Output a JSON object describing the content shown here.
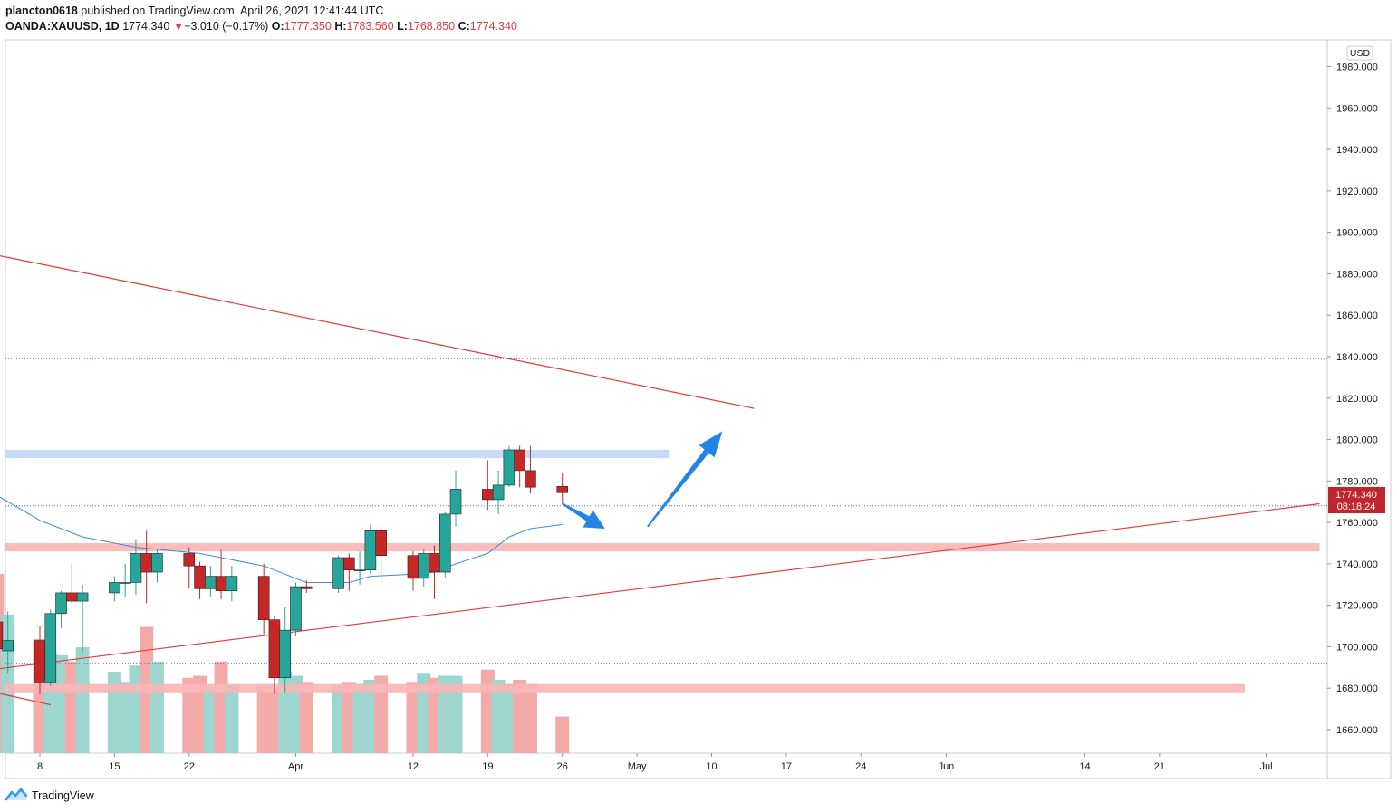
{
  "header": {
    "user": "plancton0618",
    "published_text": "published on TradingView.com, April 26, 2021 12:41:44 UTC",
    "symbol": "OANDA:XAUUSD, 1D",
    "last": "1774.340",
    "change_arrow": "▼",
    "change": "−3.010 (−0.17%)",
    "open_label": "O:",
    "open": "1777.350",
    "high_label": "H:",
    "high": "1783.560",
    "low_label": "L:",
    "low": "1768.850",
    "close_label": "C:",
    "close": "1774.340"
  },
  "footer": {
    "brand": "TradingView",
    "logo_icon": "tradingview-logo-icon"
  },
  "colors": {
    "up": "#26a69a",
    "down": "#c62828",
    "up_vol": "#9dd6cf",
    "down_vol": "#f5aaaa",
    "trendline": "#e53935",
    "ma": "#3a8fd8",
    "zone_red": "#f9b6b6",
    "zone_blue": "#c5d9f5",
    "arrow": "#2384e6"
  },
  "chart_data": {
    "type": "candlestick",
    "currency": "USD",
    "price_label": "1774.340",
    "countdown_label": "08:18:24",
    "y_range": [
      1650,
      1990
    ],
    "y_ticks": [
      "1980.000",
      "1960.000",
      "1940.000",
      "1920.000",
      "1900.000",
      "1880.000",
      "1860.000",
      "1840.000",
      "1820.000",
      "1800.000",
      "1780.000",
      "1760.000",
      "1740.000",
      "1720.000",
      "1700.000",
      "1680.000",
      "1660.000"
    ],
    "x_ticks": [
      {
        "label": "8",
        "date": "2021-03-08"
      },
      {
        "label": "15",
        "date": "2021-03-15"
      },
      {
        "label": "22",
        "date": "2021-03-22"
      },
      {
        "label": "Apr",
        "date": "2021-04-01"
      },
      {
        "label": "12",
        "date": "2021-04-12"
      },
      {
        "label": "19",
        "date": "2021-04-19"
      },
      {
        "label": "26",
        "date": "2021-04-26"
      },
      {
        "label": "May",
        "date": "2021-05-03"
      },
      {
        "label": "10",
        "date": "2021-05-10"
      },
      {
        "label": "17",
        "date": "2021-05-17"
      },
      {
        "label": "24",
        "date": "2021-05-24"
      },
      {
        "label": "Jun",
        "date": "2021-06-01"
      },
      {
        "label": "14",
        "date": "2021-06-14"
      },
      {
        "label": "21",
        "date": "2021-06-21"
      },
      {
        "label": "Jul",
        "date": "2021-07-01"
      }
    ],
    "candles": [
      {
        "date": "2021-03-04",
        "o": 1712,
        "h": 1723,
        "l": 1688,
        "c": 1699
      },
      {
        "date": "2021-03-05",
        "o": 1698,
        "h": 1717,
        "l": 1687,
        "c": 1703
      },
      {
        "date": "2021-03-08",
        "o": 1703,
        "h": 1710,
        "l": 1677,
        "c": 1683
      },
      {
        "date": "2021-03-09",
        "o": 1683,
        "h": 1718,
        "l": 1681,
        "c": 1716
      },
      {
        "date": "2021-03-10",
        "o": 1716,
        "h": 1727,
        "l": 1709,
        "c": 1726
      },
      {
        "date": "2021-03-11",
        "o": 1726,
        "h": 1740,
        "l": 1721,
        "c": 1722
      },
      {
        "date": "2021-03-12",
        "o": 1722,
        "h": 1730,
        "l": 1697,
        "c": 1726
      },
      {
        "date": "2021-03-15",
        "o": 1726,
        "h": 1734,
        "l": 1722,
        "c": 1731
      },
      {
        "date": "2021-03-16",
        "o": 1731,
        "h": 1740,
        "l": 1724,
        "c": 1731
      },
      {
        "date": "2021-03-17",
        "o": 1731,
        "h": 1752,
        "l": 1725,
        "c": 1745
      },
      {
        "date": "2021-03-18",
        "o": 1745,
        "h": 1756,
        "l": 1721,
        "c": 1736
      },
      {
        "date": "2021-03-19",
        "o": 1736,
        "h": 1747,
        "l": 1731,
        "c": 1745
      },
      {
        "date": "2021-03-22",
        "o": 1745,
        "h": 1748,
        "l": 1728,
        "c": 1739
      },
      {
        "date": "2021-03-23",
        "o": 1739,
        "h": 1741,
        "l": 1723,
        "c": 1728
      },
      {
        "date": "2021-03-24",
        "o": 1728,
        "h": 1739,
        "l": 1724,
        "c": 1734
      },
      {
        "date": "2021-03-25",
        "o": 1734,
        "h": 1747,
        "l": 1723,
        "c": 1727
      },
      {
        "date": "2021-03-26",
        "o": 1727,
        "h": 1739,
        "l": 1722,
        "c": 1734
      },
      {
        "date": "2021-03-29",
        "o": 1734,
        "h": 1740,
        "l": 1706,
        "c": 1713
      },
      {
        "date": "2021-03-30",
        "o": 1713,
        "h": 1715,
        "l": 1677,
        "c": 1685
      },
      {
        "date": "2021-03-31",
        "o": 1685,
        "h": 1719,
        "l": 1678,
        "c": 1708
      },
      {
        "date": "2021-04-01",
        "o": 1708,
        "h": 1731,
        "l": 1705,
        "c": 1729
      },
      {
        "date": "2021-04-02",
        "o": 1729,
        "h": 1732,
        "l": 1726,
        "c": 1728
      },
      {
        "date": "2021-04-05",
        "o": 1728,
        "h": 1744,
        "l": 1726,
        "c": 1743
      },
      {
        "date": "2021-04-06",
        "o": 1743,
        "h": 1745,
        "l": 1727,
        "c": 1737
      },
      {
        "date": "2021-04-07",
        "o": 1737,
        "h": 1746,
        "l": 1730,
        "c": 1737
      },
      {
        "date": "2021-04-08",
        "o": 1737,
        "h": 1759,
        "l": 1735,
        "c": 1756
      },
      {
        "date": "2021-04-09",
        "o": 1756,
        "h": 1758,
        "l": 1731,
        "c": 1744
      },
      {
        "date": "2021-04-12",
        "o": 1744,
        "h": 1746,
        "l": 1727,
        "c": 1733
      },
      {
        "date": "2021-04-13",
        "o": 1733,
        "h": 1747,
        "l": 1729,
        "c": 1745
      },
      {
        "date": "2021-04-14",
        "o": 1745,
        "h": 1749,
        "l": 1723,
        "c": 1736
      },
      {
        "date": "2021-04-15",
        "o": 1736,
        "h": 1765,
        "l": 1733,
        "c": 1764
      },
      {
        "date": "2021-04-16",
        "o": 1764,
        "h": 1785,
        "l": 1758,
        "c": 1776
      },
      {
        "date": "2021-04-19",
        "o": 1776,
        "h": 1790,
        "l": 1766,
        "c": 1771
      },
      {
        "date": "2021-04-20",
        "o": 1771,
        "h": 1785,
        "l": 1764,
        "c": 1778
      },
      {
        "date": "2021-04-21",
        "o": 1778,
        "h": 1797,
        "l": 1777,
        "c": 1795
      },
      {
        "date": "2021-04-22",
        "o": 1795,
        "h": 1797,
        "l": 1777,
        "c": 1785
      },
      {
        "date": "2021-04-23",
        "o": 1785,
        "h": 1797,
        "l": 1774,
        "c": 1777
      },
      {
        "date": "2021-04-26",
        "o": 1777.35,
        "h": 1783.56,
        "l": 1768.85,
        "c": 1774.34
      }
    ],
    "volume_relative": [
      0.88,
      0.68,
      0.56,
      0.49,
      0.48,
      0.45,
      0.52,
      0.4,
      0.35,
      0.43,
      0.62,
      0.45,
      0.37,
      0.38,
      0.32,
      0.45,
      0.33,
      0.33,
      0.32,
      0.4,
      0.38,
      0.35,
      0.33,
      0.35,
      0.34,
      0.36,
      0.38,
      0.35,
      0.39,
      0.37,
      0.38,
      0.38,
      0.41,
      0.36,
      0.34,
      0.36,
      0.34,
      0.18
    ],
    "ma_points": [
      {
        "date": "2021-03-04",
        "v": 1773
      },
      {
        "date": "2021-03-08",
        "v": 1761
      },
      {
        "date": "2021-03-10",
        "v": 1757
      },
      {
        "date": "2021-03-12",
        "v": 1753
      },
      {
        "date": "2021-03-15",
        "v": 1750
      },
      {
        "date": "2021-03-17",
        "v": 1748
      },
      {
        "date": "2021-03-19",
        "v": 1747
      },
      {
        "date": "2021-03-23",
        "v": 1745
      },
      {
        "date": "2021-03-25",
        "v": 1743
      },
      {
        "date": "2021-03-29",
        "v": 1739
      },
      {
        "date": "2021-03-31",
        "v": 1735
      },
      {
        "date": "2021-04-02",
        "v": 1731
      },
      {
        "date": "2021-04-06",
        "v": 1731
      },
      {
        "date": "2021-04-08",
        "v": 1734
      },
      {
        "date": "2021-04-12",
        "v": 1735
      },
      {
        "date": "2021-04-14",
        "v": 1736
      },
      {
        "date": "2021-04-16",
        "v": 1740
      },
      {
        "date": "2021-04-19",
        "v": 1745
      },
      {
        "date": "2021-04-21",
        "v": 1753
      },
      {
        "date": "2021-04-23",
        "v": 1757
      },
      {
        "date": "2021-04-26",
        "v": 1759
      }
    ],
    "dotted_levels": [
      1839,
      1692,
      1768
    ],
    "zones": [
      {
        "color": "red",
        "start": "2021-03-02",
        "end": "2021-07-06",
        "low": 1746,
        "high": 1750
      },
      {
        "color": "blue",
        "start": "2021-03-02",
        "end": "2021-05-06",
        "low": 1791,
        "high": 1795
      },
      {
        "color": "red",
        "start": "2021-03-02",
        "end": "2021-06-29",
        "low": 1678,
        "high": 1682
      }
    ],
    "trendlines": [
      {
        "from": {
          "date": "2021-03-02",
          "price": 1891
        },
        "to": {
          "date": "2021-05-14",
          "price": 1815
        }
      },
      {
        "from": {
          "date": "2021-03-02",
          "price": 1688
        },
        "to": {
          "date": "2021-07-06",
          "price": 1769
        }
      },
      {
        "from": {
          "date": "2021-03-02",
          "price": 1680
        },
        "to": {
          "date": "2021-03-09",
          "price": 1672
        }
      }
    ],
    "arrows": [
      {
        "from": {
          "date": "2021-04-26",
          "price": 1769
        },
        "to": {
          "date": "2021-04-30",
          "price": 1757
        }
      },
      {
        "from": {
          "date": "2021-05-04",
          "price": 1758
        },
        "to": {
          "date": "2021-05-11",
          "price": 1804
        }
      }
    ]
  }
}
